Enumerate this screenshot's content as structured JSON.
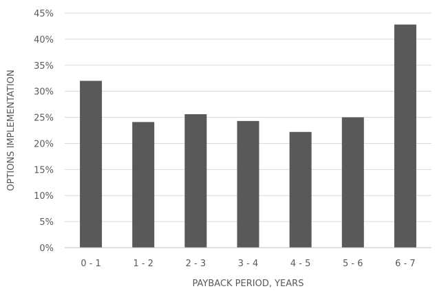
{
  "chart_data": {
    "type": "bar",
    "title": "",
    "xlabel": "PAYBACK PERIOD, YEARS",
    "ylabel": "OPTIONS IMPLEMENTATION",
    "categories": [
      "0 - 1",
      "1 - 2",
      "2 - 3",
      "3 - 4",
      "4 - 5",
      "5 - 6",
      "6 - 7"
    ],
    "values": [
      32.0,
      24.1,
      25.6,
      24.3,
      22.2,
      25.0,
      42.8
    ],
    "ylim": [
      0,
      45
    ],
    "yticks": [
      0,
      5,
      10,
      15,
      20,
      25,
      30,
      35,
      40,
      45
    ],
    "ytick_labels": [
      "0%",
      "5%",
      "10%",
      "15%",
      "20%",
      "25%",
      "30%",
      "35%",
      "40%",
      "45%"
    ],
    "grid": true,
    "legend": "none",
    "bar_color": "#595959"
  }
}
